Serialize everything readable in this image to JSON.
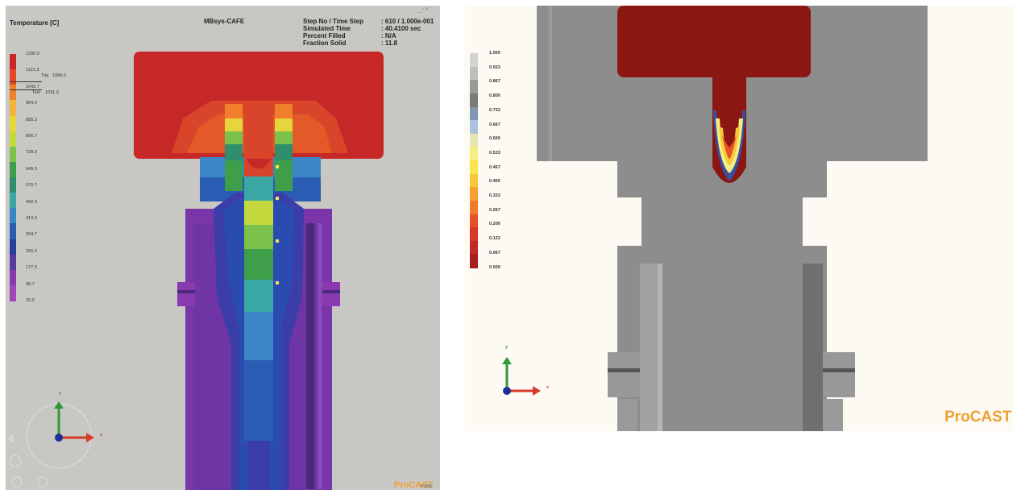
{
  "left_view": {
    "legend_title": "Temperature  [C]",
    "app_title": "MBsys-CAFE",
    "info": [
      {
        "label": "Step No / Time Step",
        "value": ": 610  /  1.000e-001"
      },
      {
        "label": "Simulated Time",
        "value": ": 40.4100 sec"
      },
      {
        "label": "Percent Filled",
        "value": ": N/A"
      },
      {
        "label": "Fraction Solid",
        "value": ": 11.8"
      }
    ],
    "colorbar": {
      "ticks": [
        "1200.0",
        "1121.3",
        "1042.7",
        "964.0",
        "885.3",
        "806.7",
        "728.0",
        "649.3",
        "570.7",
        "492.0",
        "413.3",
        "334.7",
        "256.0",
        "177.3",
        "98.7",
        "20.0"
      ],
      "colors": [
        "#c62828",
        "#e34a26",
        "#f07e2a",
        "#f3b43b",
        "#e6d53c",
        "#c4d93e",
        "#7cc24a",
        "#3f9e4a",
        "#2f8f6c",
        "#3aa7a4",
        "#3a86c6",
        "#2b5cb4",
        "#2a3c9c",
        "#5a3aa0",
        "#8a3ab0",
        "#a044b8"
      ],
      "liquidus_label": "Tliq",
      "liquidus_value": "1084.0",
      "solidus_label": "Tsol",
      "solidus_value": "1031.0"
    },
    "axis_labels": {
      "x": "x",
      "y": "y"
    },
    "brand": "ProCAST",
    "window_tag": "P1W2",
    "window_controls": "_▫✕"
  },
  "right_view": {
    "colorbar": {
      "ticks": [
        "1.000",
        "0.933",
        "0.867",
        "0.800",
        "0.733",
        "0.667",
        "0.600",
        "0.533",
        "0.467",
        "0.400",
        "0.333",
        "0.267",
        "0.200",
        "0.133",
        "0.067",
        "0.000"
      ],
      "colors": [
        "#d4d4d4",
        "#bfbfbf",
        "#9a9a9a",
        "#7a7a7a",
        "#7f97b3",
        "#aac2de",
        "#e8e6b0",
        "#f3ef82",
        "#f8e64a",
        "#f8c838",
        "#f8a030",
        "#f07a2a",
        "#e8502a",
        "#d83828",
        "#c02a26",
        "#a81e1e"
      ]
    },
    "axis_labels": {
      "x": "x",
      "y": "y"
    },
    "brand": "ProCAST"
  },
  "colors": {
    "panel_bg_left": "#c8c7c4",
    "panel_bg_right": "#fcfaf2",
    "brand": "#f0a033",
    "axis_x": "#d63a2a",
    "axis_y": "#2e9a3a",
    "axis_z": "#1a2e9a"
  }
}
